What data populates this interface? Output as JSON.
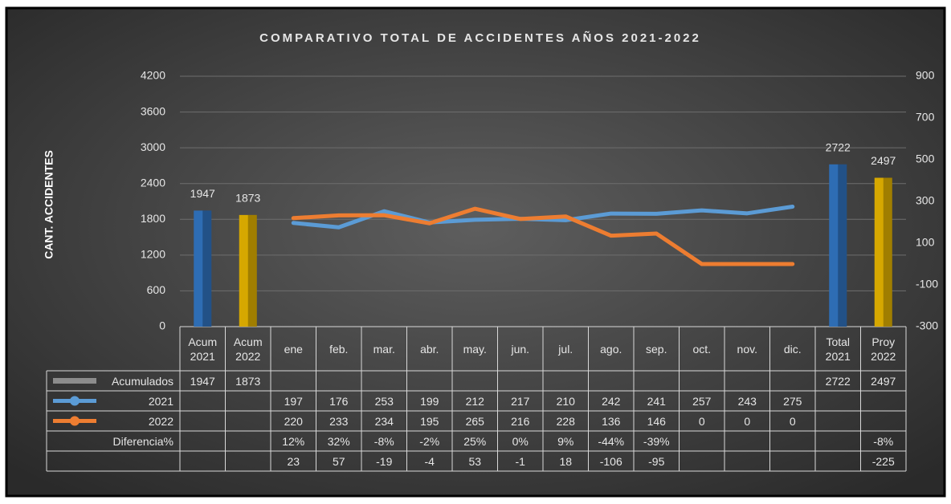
{
  "chart_data": {
    "type": "combo",
    "title": "COMPARATIVO TOTAL DE ACCIDENTES AÑOS 2021-2022",
    "y_label": "CANT. ACCIDENTES",
    "categories": [
      "Acum 2021",
      "Acum 2022",
      "ene",
      "feb.",
      "mar.",
      "abr.",
      "may.",
      "jun.",
      "jul.",
      "ago.",
      "sep.",
      "oct.",
      "nov.",
      "dic.",
      "Total 2021",
      "Proy 2022"
    ],
    "ylim": [
      0,
      4200
    ],
    "yticks": [
      0,
      600,
      1200,
      1800,
      2400,
      3000,
      3600,
      4200
    ],
    "y2lim": [
      -300,
      900
    ],
    "y2ticks": [
      -300,
      -100,
      100,
      300,
      500,
      700,
      900
    ],
    "grid": true,
    "series": [
      {
        "name": "Acumulados",
        "type": "bar",
        "color": "#8c8c8c",
        "colors": [
          "#2e6db4",
          "#d6a800",
          null,
          null,
          null,
          null,
          null,
          null,
          null,
          null,
          null,
          null,
          null,
          null,
          "#2e6db4",
          "#d6a800"
        ],
        "values": [
          1947,
          1873,
          null,
          null,
          null,
          null,
          null,
          null,
          null,
          null,
          null,
          null,
          null,
          null,
          2722,
          2497
        ]
      },
      {
        "name": "2021",
        "type": "line",
        "axis": "y2",
        "color": "#5b9bd5",
        "values": [
          null,
          null,
          197,
          176,
          253,
          199,
          212,
          217,
          210,
          242,
          241,
          257,
          243,
          275,
          null,
          null
        ]
      },
      {
        "name": "2022",
        "type": "line",
        "axis": "y2",
        "color": "#ed7d31",
        "values": [
          null,
          null,
          220,
          233,
          234,
          195,
          265,
          216,
          228,
          136,
          146,
          0,
          0,
          0,
          null,
          null
        ]
      },
      {
        "name": "Diferencia%",
        "type": "table",
        "values": [
          null,
          null,
          12,
          32,
          -8,
          -2,
          25,
          0,
          9,
          -44,
          -39,
          null,
          null,
          null,
          null,
          -8
        ],
        "value_labels": [
          null,
          null,
          "12%",
          "32%",
          "-8%",
          "-2%",
          "25%",
          "0%",
          "9%",
          "-44%",
          "-39%",
          null,
          null,
          null,
          null,
          "-8%"
        ]
      },
      {
        "type": "table",
        "values": [
          null,
          null,
          23,
          57,
          -19,
          -4,
          53,
          -1,
          18,
          -106,
          -95,
          null,
          null,
          null,
          null,
          -225
        ]
      }
    ]
  }
}
